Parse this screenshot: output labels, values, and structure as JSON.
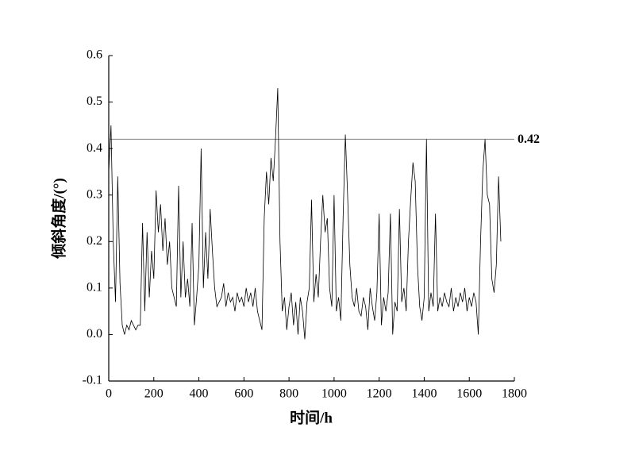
{
  "chart_data": {
    "type": "line",
    "x_label": "时间/h",
    "y_label": "倾斜角度/(°)",
    "x": [
      0,
      10,
      20,
      30,
      40,
      50,
      60,
      70,
      80,
      90,
      100,
      110,
      120,
      130,
      140,
      150,
      160,
      170,
      180,
      190,
      200,
      210,
      220,
      230,
      240,
      250,
      260,
      270,
      280,
      290,
      300,
      310,
      320,
      330,
      340,
      350,
      360,
      370,
      380,
      390,
      400,
      410,
      420,
      430,
      440,
      450,
      460,
      470,
      480,
      490,
      500,
      510,
      520,
      530,
      540,
      550,
      560,
      570,
      580,
      590,
      600,
      610,
      620,
      630,
      640,
      650,
      660,
      670,
      680,
      690,
      700,
      710,
      720,
      730,
      740,
      750,
      760,
      770,
      780,
      790,
      800,
      810,
      820,
      830,
      840,
      850,
      860,
      870,
      880,
      890,
      900,
      910,
      920,
      930,
      940,
      950,
      960,
      970,
      980,
      990,
      1000,
      1010,
      1020,
      1030,
      1040,
      1050,
      1060,
      1070,
      1080,
      1090,
      1100,
      1110,
      1120,
      1130,
      1140,
      1150,
      1160,
      1170,
      1180,
      1190,
      1200,
      1210,
      1220,
      1230,
      1240,
      1250,
      1260,
      1270,
      1280,
      1290,
      1300,
      1310,
      1320,
      1330,
      1340,
      1350,
      1360,
      1370,
      1380,
      1390,
      1400,
      1410,
      1420,
      1430,
      1440,
      1450,
      1460,
      1470,
      1480,
      1490,
      1500,
      1510,
      1520,
      1530,
      1540,
      1550,
      1560,
      1570,
      1580,
      1590,
      1600,
      1610,
      1620,
      1630,
      1640,
      1650,
      1660,
      1670,
      1680,
      1690,
      1700,
      1710,
      1720,
      1730,
      1740
    ],
    "values": [
      0.35,
      0.45,
      0.2,
      0.07,
      0.34,
      0.11,
      0.02,
      0.0,
      0.02,
      0.01,
      0.03,
      0.02,
      0.01,
      0.02,
      0.02,
      0.24,
      0.05,
      0.22,
      0.08,
      0.18,
      0.12,
      0.31,
      0.22,
      0.28,
      0.18,
      0.25,
      0.15,
      0.2,
      0.1,
      0.08,
      0.06,
      0.32,
      0.08,
      0.2,
      0.08,
      0.12,
      0.06,
      0.24,
      0.02,
      0.08,
      0.15,
      0.4,
      0.1,
      0.22,
      0.12,
      0.27,
      0.18,
      0.1,
      0.06,
      0.07,
      0.08,
      0.11,
      0.06,
      0.09,
      0.07,
      0.08,
      0.05,
      0.09,
      0.07,
      0.08,
      0.06,
      0.1,
      0.07,
      0.09,
      0.06,
      0.1,
      0.05,
      0.03,
      0.01,
      0.25,
      0.35,
      0.28,
      0.38,
      0.33,
      0.42,
      0.53,
      0.2,
      0.05,
      0.08,
      0.01,
      0.06,
      0.09,
      0.02,
      0.07,
      0.0,
      0.08,
      0.05,
      -0.01,
      0.07,
      0.1,
      0.29,
      0.07,
      0.13,
      0.08,
      0.2,
      0.3,
      0.22,
      0.25,
      0.1,
      0.06,
      0.3,
      0.05,
      0.08,
      0.03,
      0.25,
      0.43,
      0.3,
      0.15,
      0.08,
      0.06,
      0.1,
      0.05,
      0.04,
      0.08,
      0.06,
      0.01,
      0.1,
      0.06,
      0.03,
      0.09,
      0.26,
      0.02,
      0.08,
      0.05,
      0.09,
      0.26,
      0.0,
      0.07,
      0.05,
      0.27,
      0.07,
      0.1,
      0.05,
      0.2,
      0.29,
      0.37,
      0.33,
      0.15,
      0.06,
      0.03,
      0.08,
      0.42,
      0.05,
      0.09,
      0.06,
      0.26,
      0.05,
      0.08,
      0.06,
      0.09,
      0.07,
      0.06,
      0.1,
      0.05,
      0.08,
      0.06,
      0.09,
      0.07,
      0.1,
      0.05,
      0.08,
      0.06,
      0.09,
      0.07,
      0.0,
      0.2,
      0.35,
      0.42,
      0.3,
      0.28,
      0.12,
      0.09,
      0.15,
      0.34,
      0.2
    ],
    "color": "#000000",
    "reference_line": 0.42,
    "reference_color": "#808080",
    "xlim": [
      0,
      1800
    ],
    "xticks": [
      0,
      200,
      400,
      600,
      800,
      1000,
      1200,
      1400,
      1600,
      1800
    ],
    "ylim": [
      -0.1,
      0.6
    ],
    "yticks": [
      -0.1,
      {
        "value": 0,
        "label": "0.0"
      },
      0.1,
      0.2,
      0.3,
      0.4,
      0.5,
      0.6
    ]
  }
}
